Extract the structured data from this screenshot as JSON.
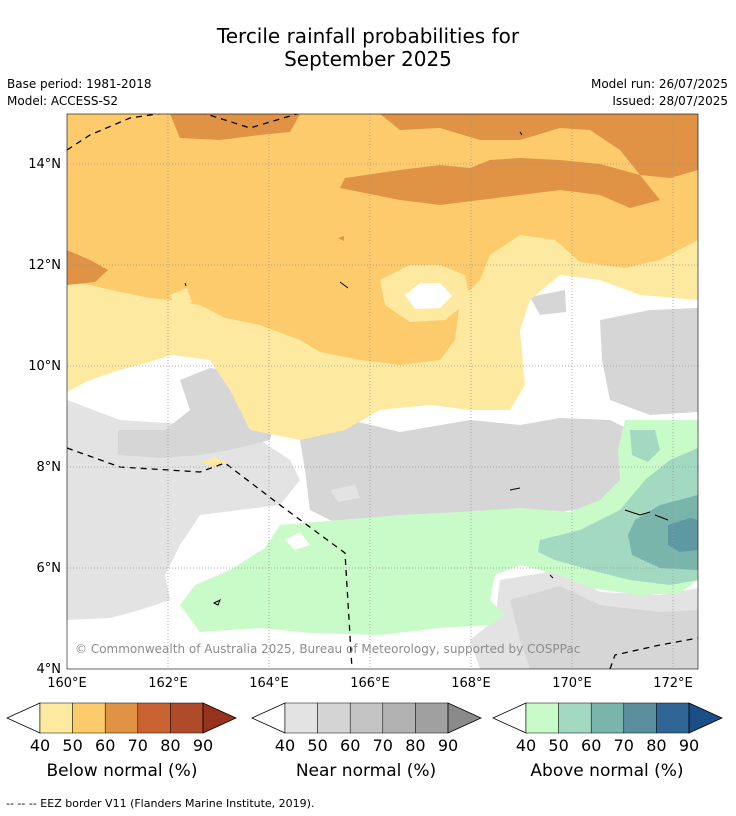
{
  "header": {
    "title_line1": "Tercile rainfall probabilities for",
    "title_line2": "September 2025",
    "base_period": "Base period: 1981-2018",
    "model": "Model: ACCESS-S2",
    "model_run": "Model run: 26/07/2025",
    "issued": "Issued: 28/07/2025"
  },
  "map": {
    "lat_labels": [
      "14°N",
      "12°N",
      "10°N",
      "8°N",
      "6°N",
      "4°N"
    ],
    "lon_labels": [
      "160°E",
      "162°E",
      "164°E",
      "166°E",
      "168°E",
      "170°E",
      "172°E"
    ],
    "copyright": "© Commonwealth of Australia 2025, Bureau of Meteorology, supported by COSPPac",
    "colors": {
      "below_40": "#fdeaa0",
      "below_50": "#fdcb6b",
      "below_60": "#e09245",
      "near_40": "#e2e2e2",
      "near_50": "#d6d6d6",
      "above_40": "#c9fbc9",
      "above_50": "#a3d8c1",
      "above_60": "#7ab5ab",
      "above_70": "#5e99a3"
    }
  },
  "colorbars": [
    {
      "label": "Below normal (%)",
      "ticks": [
        "40",
        "50",
        "60",
        "70",
        "80",
        "90"
      ],
      "colors": [
        "#fdeaa0",
        "#fdcb6b",
        "#e09245",
        "#ca6332",
        "#b04b2a",
        "#97331d"
      ]
    },
    {
      "label": "Near normal (%)",
      "ticks": [
        "40",
        "50",
        "60",
        "70",
        "80",
        "90"
      ],
      "colors": [
        "#e3e3e3",
        "#d4d4d4",
        "#c4c4c4",
        "#b2b2b2",
        "#a0a0a0",
        "#8a8a8a"
      ]
    },
    {
      "label": "Above normal (%)",
      "ticks": [
        "40",
        "50",
        "60",
        "70",
        "80",
        "90"
      ],
      "colors": [
        "#c9fbc9",
        "#a3d8c1",
        "#7ab5ab",
        "#5b8f9e",
        "#2f6696",
        "#1b4e86"
      ]
    }
  ],
  "footer": {
    "eez_note": "--  --  -- EEZ border V11 (Flanders Marine Institute, 2019)."
  }
}
